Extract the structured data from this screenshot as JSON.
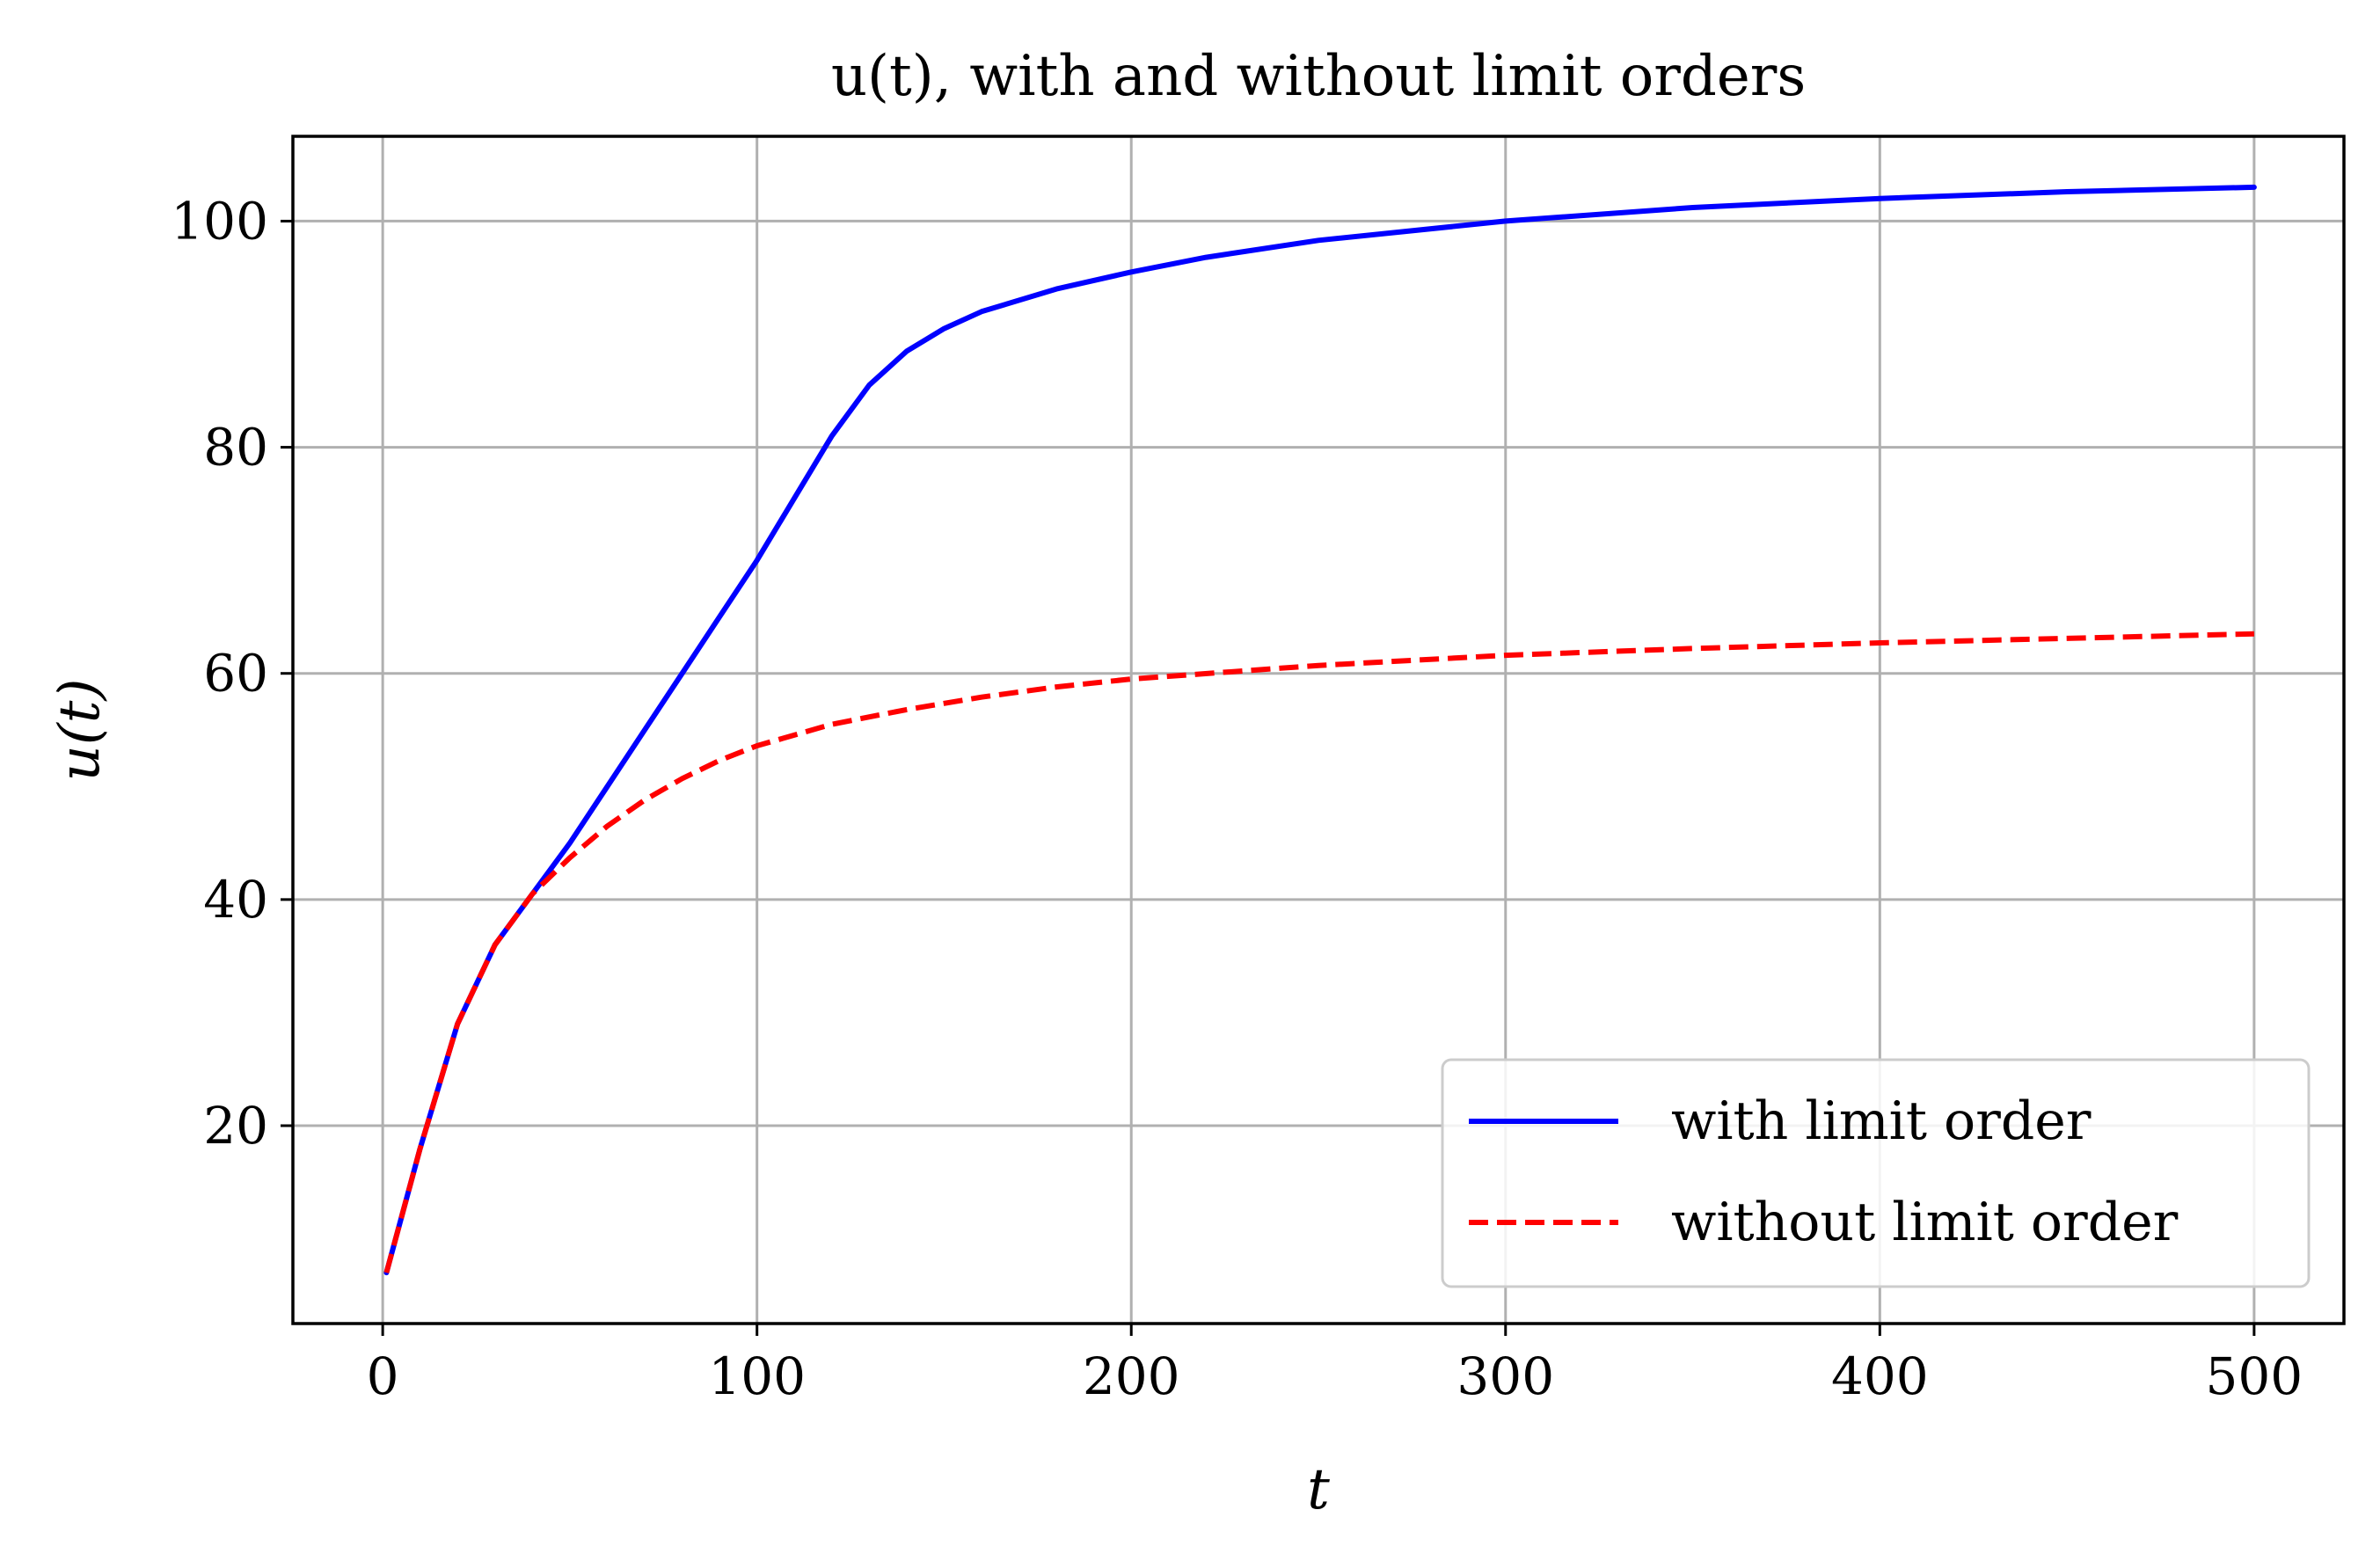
{
  "chart_data": {
    "type": "line",
    "title": "u(t), with and without limit orders",
    "xlabel": "t",
    "ylabel": "u(t)",
    "xlim": [
      -24,
      524
    ],
    "ylim": [
      2.5,
      107.5
    ],
    "xticks": [
      0,
      100,
      200,
      300,
      400,
      500
    ],
    "yticks": [
      20,
      40,
      60,
      80,
      100
    ],
    "grid": true,
    "legend_position": "bottom-right",
    "series": [
      {
        "name": "with limit order",
        "color": "#0000ff",
        "style": "solid",
        "x": [
          1,
          10,
          20,
          30,
          40,
          50,
          60,
          70,
          80,
          90,
          100,
          110,
          120,
          130,
          140,
          150,
          160,
          180,
          200,
          220,
          250,
          300,
          350,
          400,
          450,
          500
        ],
        "y": [
          7,
          18,
          29,
          36,
          40.5,
          45,
          50,
          55,
          60,
          65,
          70,
          75.5,
          81,
          85.5,
          88.5,
          90.5,
          92,
          94,
          95.5,
          96.8,
          98.3,
          100,
          101.2,
          102,
          102.6,
          103
        ]
      },
      {
        "name": "without limit order",
        "color": "#ff0000",
        "style": "dashed",
        "x": [
          1,
          10,
          20,
          30,
          40,
          50,
          60,
          70,
          80,
          90,
          100,
          120,
          140,
          160,
          180,
          200,
          250,
          300,
          350,
          400,
          450,
          500
        ],
        "y": [
          7,
          18,
          29,
          36,
          40.5,
          43.7,
          46.5,
          48.8,
          50.7,
          52.3,
          53.6,
          55.5,
          56.8,
          57.9,
          58.8,
          59.5,
          60.7,
          61.6,
          62.2,
          62.7,
          63.1,
          63.5
        ]
      }
    ]
  }
}
